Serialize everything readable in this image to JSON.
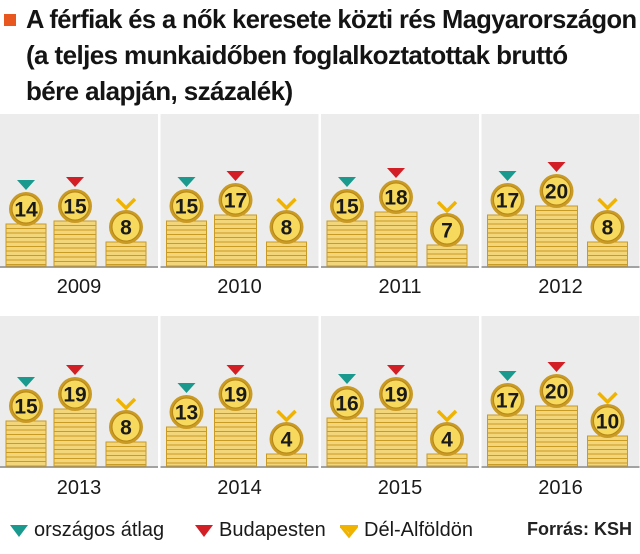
{
  "title": {
    "lines": [
      "A férfiak és a nők keresete közti rés Magyarországon",
      "(a teljes munkaidőben foglalkoztatottak bruttó",
      "bére alapján, százalék)"
    ]
  },
  "colors": {
    "accent": "#e8571f",
    "orszagos": "#1a9a8e",
    "budapest": "#d21f26",
    "delalfold": "#f0b400",
    "coin_light": "#f3d57a",
    "coin_dark": "#c99a24",
    "panel_bg": "#ececec"
  },
  "legend": [
    {
      "label": "országos átlag",
      "icon": "teal-triangle-icon"
    },
    {
      "label": "Budapesten",
      "icon": "red-triangle-icon"
    },
    {
      "label": "Dél-Alföldön",
      "icon": "yellow-chevron-icon"
    }
  ],
  "source": "Forrás: KSH",
  "chart_data": {
    "type": "bar",
    "series_names": [
      "országos átlag",
      "Budapesten",
      "Dél-Alföldön"
    ],
    "years": [
      "2009",
      "2010",
      "2011",
      "2012",
      "2013",
      "2014",
      "2015",
      "2016"
    ],
    "values": [
      [
        14,
        15,
        8
      ],
      [
        15,
        17,
        8
      ],
      [
        15,
        18,
        7
      ],
      [
        17,
        20,
        8
      ],
      [
        15,
        19,
        8
      ],
      [
        13,
        19,
        4
      ],
      [
        16,
        19,
        4
      ],
      [
        17,
        20,
        10
      ]
    ]
  }
}
